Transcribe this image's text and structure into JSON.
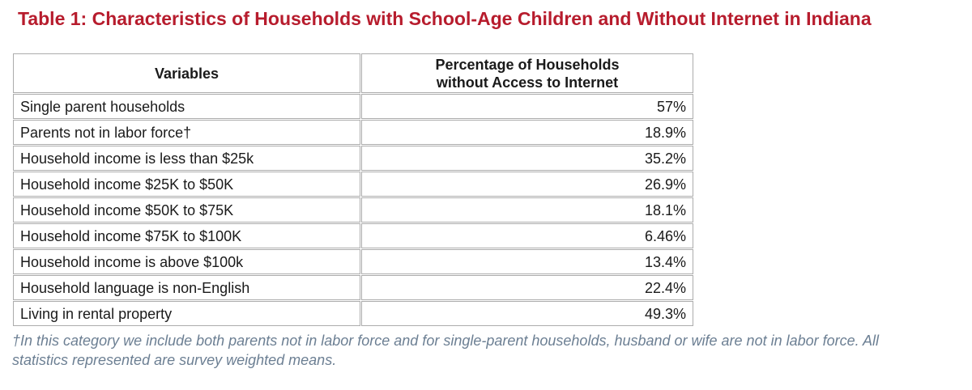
{
  "page": {
    "title": "Table 1: Characteristics of Households with School-Age Children and Without Internet in Indiana"
  },
  "table": {
    "columns": [
      "Variables",
      "Percentage of Households without Access to Internet"
    ],
    "rows": [
      {
        "variable": "Single parent households",
        "value": "57%"
      },
      {
        "variable": "Parents not in labor force†",
        "value": "18.9%"
      },
      {
        "variable": "Household income is less than $25k",
        "value": "35.2%"
      },
      {
        "variable": "Household income $25K to $50K",
        "value": "26.9%"
      },
      {
        "variable": "Household income $50K to $75K",
        "value": "18.1%"
      },
      {
        "variable": "Household income $75K to $100K",
        "value": "6.46%"
      },
      {
        "variable": "Household income is above $100k",
        "value": "13.4%"
      },
      {
        "variable": "Household language is non-English",
        "value": "22.4%"
      },
      {
        "variable": "Living in rental property",
        "value": "49.3%"
      }
    ]
  },
  "footnote": "†In this category we include both parents not in labor force and for single-parent households, husband or wife are not in labor force. All statistics represented are survey weighted means.",
  "colors": {
    "title_text": "#B71C2D",
    "table_border": "#ACACAC",
    "body_text": "#1A1A1A",
    "footnote_text": "#6C7F93",
    "background": "#FFFFFF"
  }
}
